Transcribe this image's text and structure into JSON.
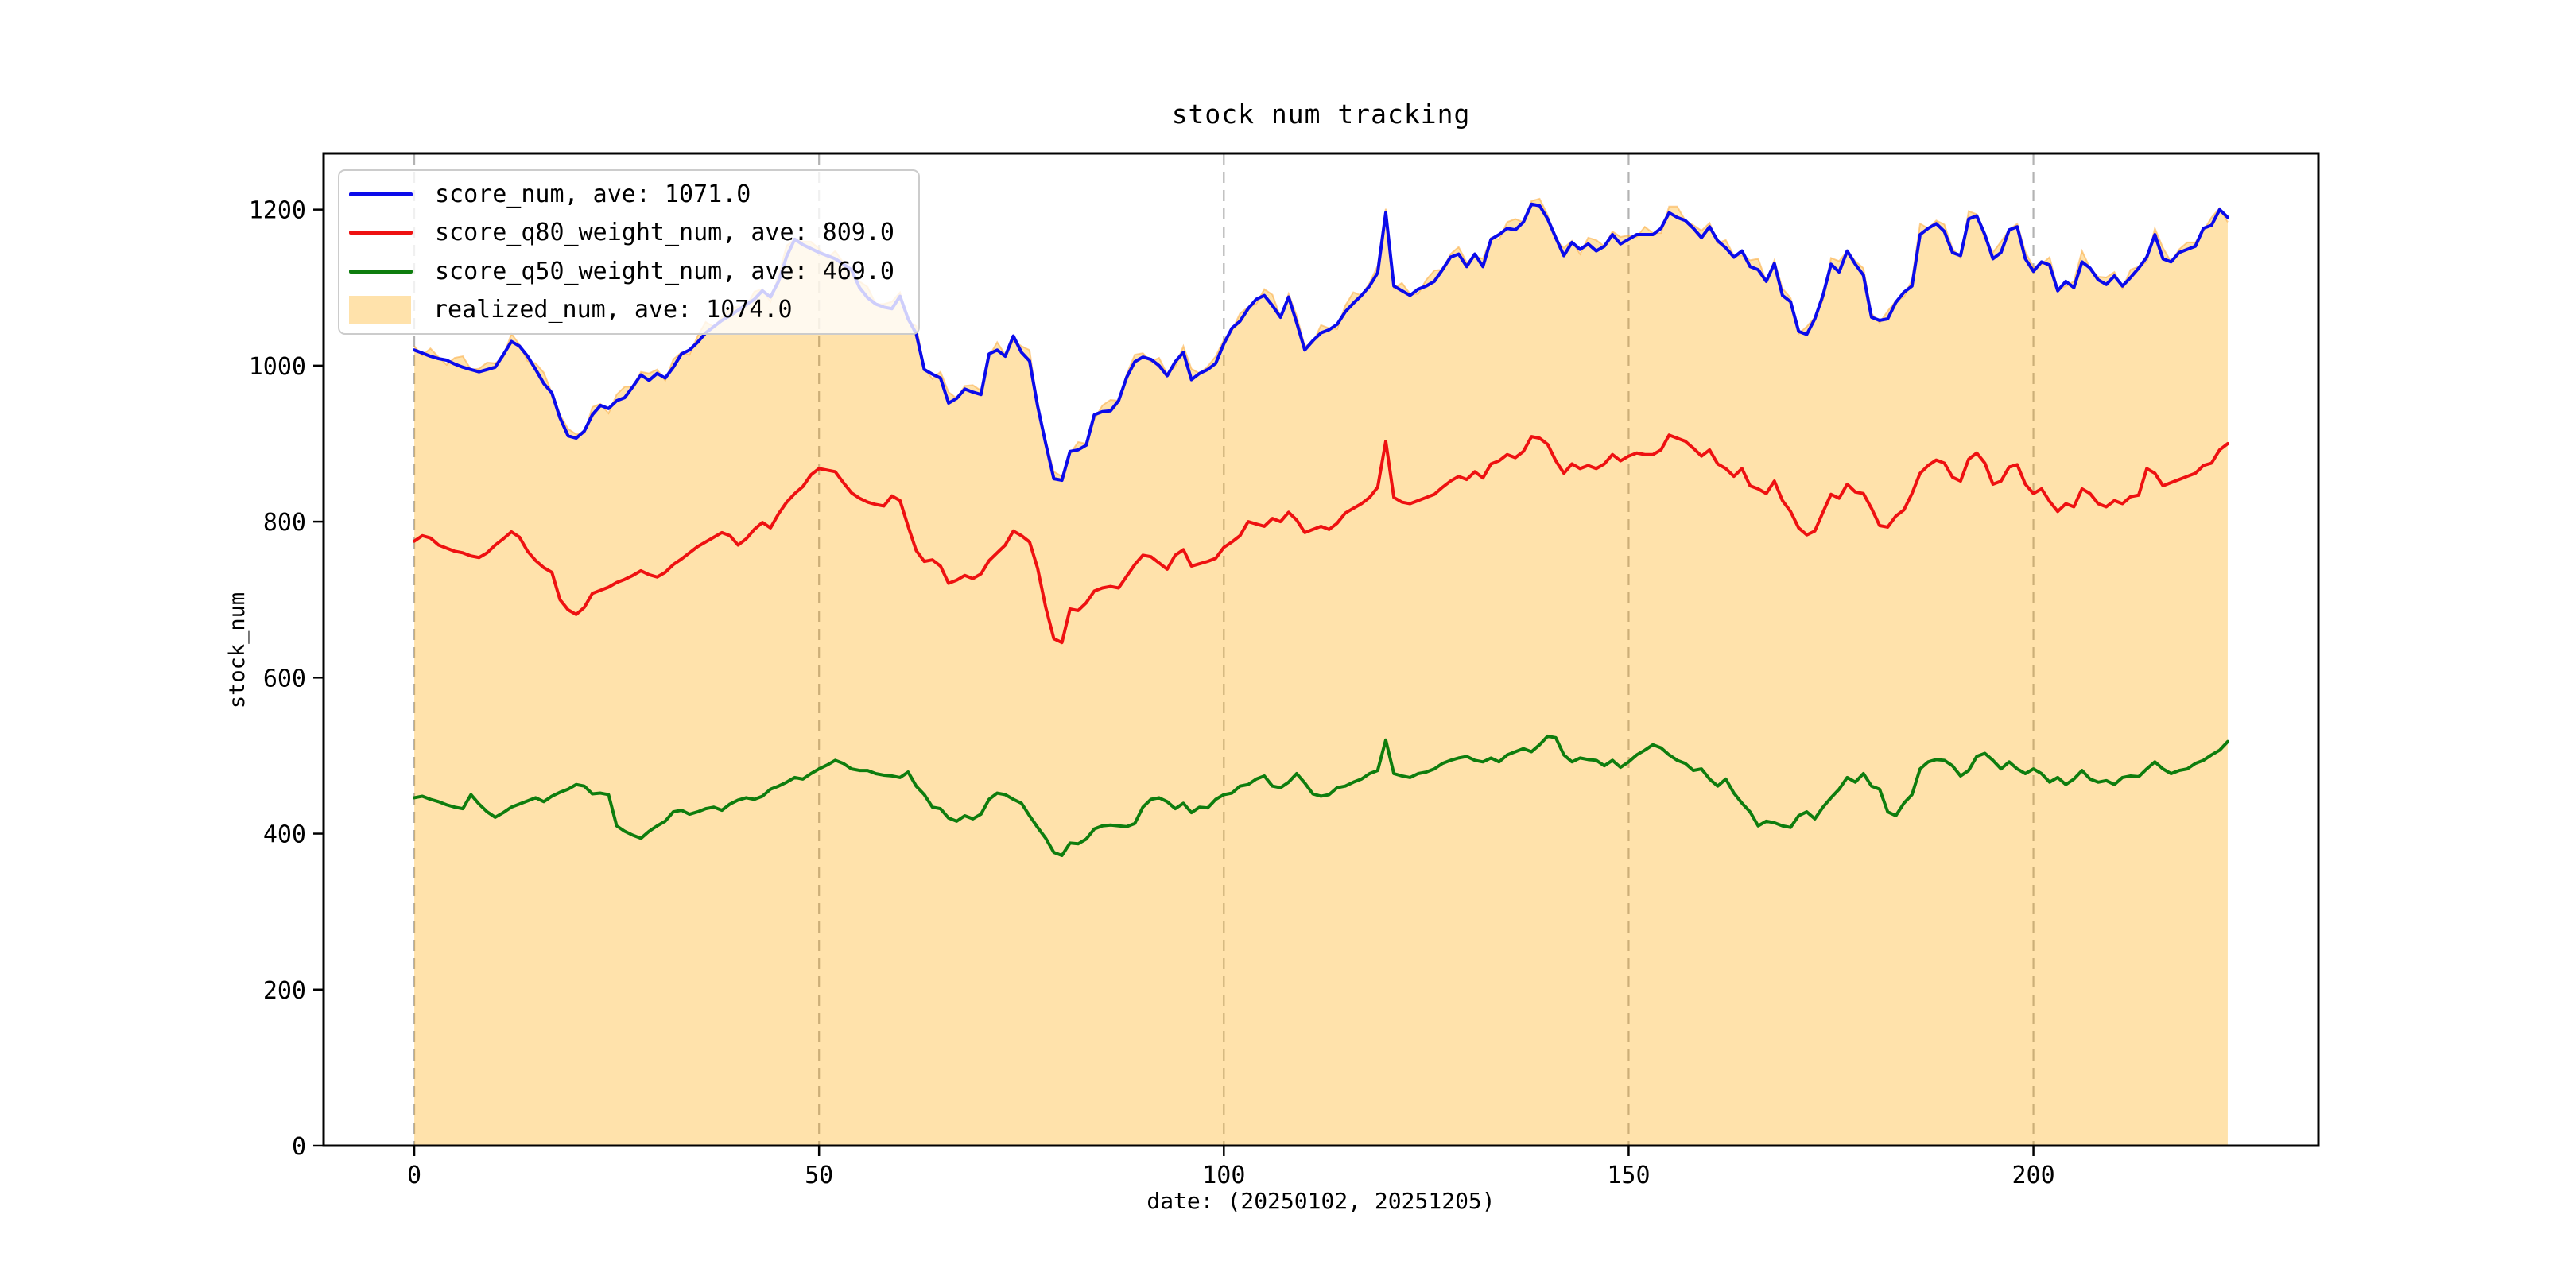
{
  "figure": {
    "title": "stock num tracking",
    "xlabel": "date: (20250102, 20251205)",
    "ylabel": "stock_num"
  },
  "chart_data": {
    "type": "line",
    "title": "stock num tracking",
    "xlabel": "date: (20250102, 20251205)",
    "ylabel": "stock_num",
    "x_start": 0,
    "x_step": 1,
    "n_points": 225,
    "xlim": [
      -11.2,
      235.2
    ],
    "ylim": [
      0,
      1272
    ],
    "xticks": [
      0,
      50,
      100,
      150,
      200
    ],
    "yticks": [
      0,
      200,
      400,
      600,
      800,
      1000,
      1200
    ],
    "grid": "vertical-dashed",
    "grid_color": "#b3b3b3",
    "legend_position": "upper-left",
    "axis_color": "#000000",
    "series": [
      {
        "name": "score_num, ave: 1071.0",
        "type": "line",
        "color": "#0b0bea",
        "values": [
          1020,
          1016,
          1012,
          1009,
          1007,
          1002,
          998,
          995,
          992,
          995,
          998,
          1014,
          1031,
          1025,
          1012,
          995,
          977,
          965,
          933,
          910,
          907,
          916,
          937,
          949,
          945,
          955,
          959,
          973,
          988,
          981,
          990,
          984,
          998,
          1015,
          1020,
          1030,
          1042,
          1050,
          1058,
          1064,
          1071,
          1078,
          1085,
          1096,
          1088,
          1108,
          1140,
          1162,
          1155,
          1150,
          1145,
          1141,
          1137,
          1130,
          1123,
          1100,
          1087,
          1079,
          1075,
          1073,
          1089,
          1060,
          1041,
          995,
          989,
          984,
          952,
          958,
          970,
          966,
          963,
          1015,
          1020,
          1012,
          1038,
          1017,
          1006,
          948,
          900,
          855,
          853,
          890,
          892,
          898,
          937,
          941,
          942,
          955,
          985,
          1005,
          1011,
          1008,
          1000,
          987,
          1005,
          1017,
          982,
          990,
          995,
          1003,
          1028,
          1048,
          1057,
          1073,
          1085,
          1090,
          1077,
          1062,
          1088,
          1055,
          1020,
          1032,
          1042,
          1046,
          1053,
          1069,
          1080,
          1090,
          1102,
          1119,
          1196,
          1102,
          1096,
          1090,
          1098,
          1102,
          1108,
          1123,
          1139,
          1143,
          1127,
          1143,
          1127,
          1162,
          1168,
          1176,
          1174,
          1184,
          1207,
          1205,
          1188,
          1164,
          1141,
          1158,
          1149,
          1156,
          1147,
          1153,
          1168,
          1156,
          1162,
          1168,
          1168,
          1168,
          1176,
          1196,
          1190,
          1186,
          1176,
          1164,
          1178,
          1160,
          1151,
          1139,
          1147,
          1127,
          1123,
          1108,
          1131,
          1090,
          1082,
          1044,
          1040,
          1060,
          1090,
          1130,
          1120,
          1147,
          1130,
          1116,
          1062,
          1058,
          1060,
          1081,
          1094,
          1102,
          1168,
          1176,
          1182,
          1172,
          1145,
          1141,
          1188,
          1192,
          1168,
          1137,
          1145,
          1174,
          1178,
          1137,
          1121,
          1133,
          1129,
          1096,
          1108,
          1100,
          1133,
          1125,
          1110,
          1104,
          1115,
          1102,
          1113,
          1125,
          1139,
          1168,
          1137,
          1133,
          1145,
          1149,
          1153,
          1176,
          1180,
          1200,
          1190
        ]
      },
      {
        "name": "score_q80_weight_num, ave: 809.0",
        "type": "line",
        "color": "#ee1111",
        "values": [
          775,
          782,
          779,
          770,
          766,
          762,
          760,
          756,
          754,
          760,
          770,
          778,
          787,
          780,
          762,
          750,
          741,
          735,
          700,
          687,
          681,
          690,
          708,
          712,
          716,
          722,
          726,
          731,
          737,
          732,
          729,
          735,
          745,
          752,
          760,
          768,
          774,
          780,
          786,
          782,
          770,
          778,
          790,
          799,
          792,
          810,
          825,
          836,
          845,
          860,
          868,
          866,
          864,
          850,
          837,
          830,
          825,
          822,
          820,
          833,
          827,
          794,
          763,
          749,
          751,
          743,
          721,
          725,
          731,
          727,
          733,
          750,
          760,
          770,
          788,
          782,
          774,
          740,
          690,
          650,
          645,
          688,
          686,
          696,
          711,
          715,
          717,
          715,
          730,
          745,
          757,
          755,
          747,
          739,
          757,
          764,
          743,
          746,
          749,
          753,
          767,
          774,
          782,
          800,
          797,
          794,
          804,
          800,
          812,
          802,
          786,
          790,
          794,
          790,
          798,
          811,
          817,
          823,
          831,
          844,
          903,
          831,
          825,
          823,
          827,
          831,
          835,
          844,
          852,
          858,
          854,
          864,
          856,
          874,
          878,
          886,
          882,
          890,
          909,
          907,
          899,
          878,
          862,
          874,
          868,
          872,
          868,
          874,
          886,
          878,
          884,
          888,
          886,
          886,
          892,
          911,
          907,
          903,
          894,
          884,
          892,
          874,
          868,
          858,
          868,
          846,
          842,
          836,
          852,
          827,
          813,
          792,
          783,
          788,
          812,
          835,
          830,
          848,
          838,
          836,
          817,
          795,
          793,
          807,
          815,
          836,
          862,
          872,
          879,
          875,
          857,
          852,
          880,
          888,
          875,
          848,
          852,
          870,
          873,
          848,
          836,
          842,
          826,
          813,
          823,
          819,
          842,
          836,
          823,
          819,
          827,
          823,
          832,
          834,
          868,
          862,
          846,
          850,
          854,
          858,
          862,
          872,
          875,
          892,
          900
        ]
      },
      {
        "name": "score_q50_weight_num, ave: 469.0",
        "type": "line",
        "color": "#0e7d0e",
        "values": [
          446,
          448,
          444,
          441,
          437,
          434,
          432,
          450,
          438,
          428,
          421,
          427,
          434,
          438,
          442,
          446,
          441,
          448,
          453,
          457,
          463,
          461,
          451,
          452,
          450,
          410,
          403,
          398,
          394,
          403,
          410,
          416,
          428,
          430,
          425,
          428,
          432,
          434,
          430,
          438,
          443,
          446,
          444,
          448,
          457,
          461,
          466,
          472,
          470,
          477,
          483,
          488,
          494,
          490,
          483,
          481,
          481,
          477,
          475,
          474,
          472,
          479,
          461,
          450,
          434,
          432,
          420,
          416,
          423,
          419,
          425,
          444,
          452,
          450,
          444,
          439,
          423,
          408,
          394,
          376,
          372,
          388,
          387,
          393,
          406,
          410,
          411,
          410,
          409,
          413,
          434,
          444,
          446,
          441,
          432,
          439,
          427,
          434,
          433,
          444,
          450,
          452,
          461,
          463,
          470,
          474,
          461,
          459,
          466,
          477,
          465,
          451,
          448,
          450,
          459,
          461,
          466,
          470,
          477,
          481,
          520,
          477,
          474,
          472,
          477,
          479,
          483,
          490,
          494,
          497,
          499,
          494,
          492,
          497,
          492,
          501,
          505,
          509,
          505,
          514,
          525,
          523,
          501,
          492,
          497,
          495,
          494,
          487,
          494,
          485,
          492,
          501,
          507,
          514,
          510,
          501,
          494,
          490,
          481,
          483,
          470,
          461,
          470,
          452,
          439,
          428,
          410,
          416,
          414,
          410,
          408,
          423,
          428,
          419,
          434,
          446,
          457,
          472,
          466,
          477,
          461,
          457,
          428,
          423,
          439,
          450,
          483,
          492,
          495,
          494,
          487,
          474,
          481,
          499,
          503,
          494,
          483,
          492,
          483,
          477,
          483,
          477,
          466,
          472,
          463,
          470,
          481,
          470,
          466,
          468,
          463,
          472,
          474,
          473,
          483,
          492,
          483,
          477,
          481,
          483,
          490,
          494,
          501,
          507,
          518
        ]
      },
      {
        "name": "realized_num, ave: 1074.0",
        "type": "area",
        "color": "#ffa600",
        "fill": "rgba(255,166,0,0.33)",
        "values": [
          1025,
          1013,
          1022,
          1011,
          1001,
          1010,
          1012,
          995,
          996,
          1004,
          1003,
          1011,
          1041,
          1027,
          1006,
          1003,
          991,
          965,
          937,
          919,
          912,
          913,
          947,
          951,
          939,
          963,
          973,
          973,
          992,
          990,
          995,
          981,
          1008,
          1017,
          1014,
          1038,
          1056,
          1050,
          1062,
          1073,
          1076,
          1075,
          1095,
          1098,
          1082,
          1116,
          1154,
          1162,
          1159,
          1159,
          1150,
          1138,
          1147,
          1132,
          1117,
          1108,
          1101,
          1079,
          1079,
          1082,
          1094,
          1057,
          1051,
          997,
          983,
          992,
          966,
          958,
          974,
          975,
          968,
          1012,
          1030,
          1014,
          1032,
          1025,
          1020,
          948,
          904,
          864,
          858,
          887,
          902,
          900,
          931,
          949,
          956,
          955,
          989,
          1014,
          1016,
          1005,
          1010,
          989,
          999,
          1025,
          996,
          990,
          999,
          1012,
          1033,
          1045,
          1067,
          1075,
          1079,
          1098,
          1091,
          1062,
          1092,
          1064,
          1025,
          1029,
          1052,
          1048,
          1047,
          1077,
          1094,
          1090,
          1106,
          1128,
          1201,
          1099,
          1106,
          1092,
          1092,
          1110,
          1122,
          1123,
          1143,
          1152,
          1132,
          1140,
          1137,
          1164,
          1162,
          1184,
          1188,
          1184,
          1211,
          1214,
          1193,
          1161,
          1151,
          1160,
          1143,
          1164,
          1161,
          1153,
          1172,
          1165,
          1167,
          1165,
          1178,
          1170,
          1170,
          1204,
          1204,
          1186,
          1180,
          1173,
          1183,
          1157,
          1161,
          1141,
          1141,
          1135,
          1137,
          1108,
          1135,
          1099,
          1087,
          1041,
          1050,
          1062,
          1084,
          1138,
          1134,
          1147,
          1134,
          1125,
          1067,
          1055,
          1070,
          1083,
          1088,
          1110,
          1182,
          1176,
          1186,
          1181,
          1150,
          1138,
          1198,
          1194,
          1162,
          1145,
          1159,
          1174,
          1182,
          1146,
          1126,
          1130,
          1139,
          1098,
          1102,
          1108,
          1147,
          1125,
          1114,
          1113,
          1120,
          1099,
          1123,
          1127,
          1133,
          1176,
          1151,
          1133,
          1149,
          1158,
          1158,
          1173,
          1190,
          1202,
          1184
        ]
      }
    ]
  }
}
